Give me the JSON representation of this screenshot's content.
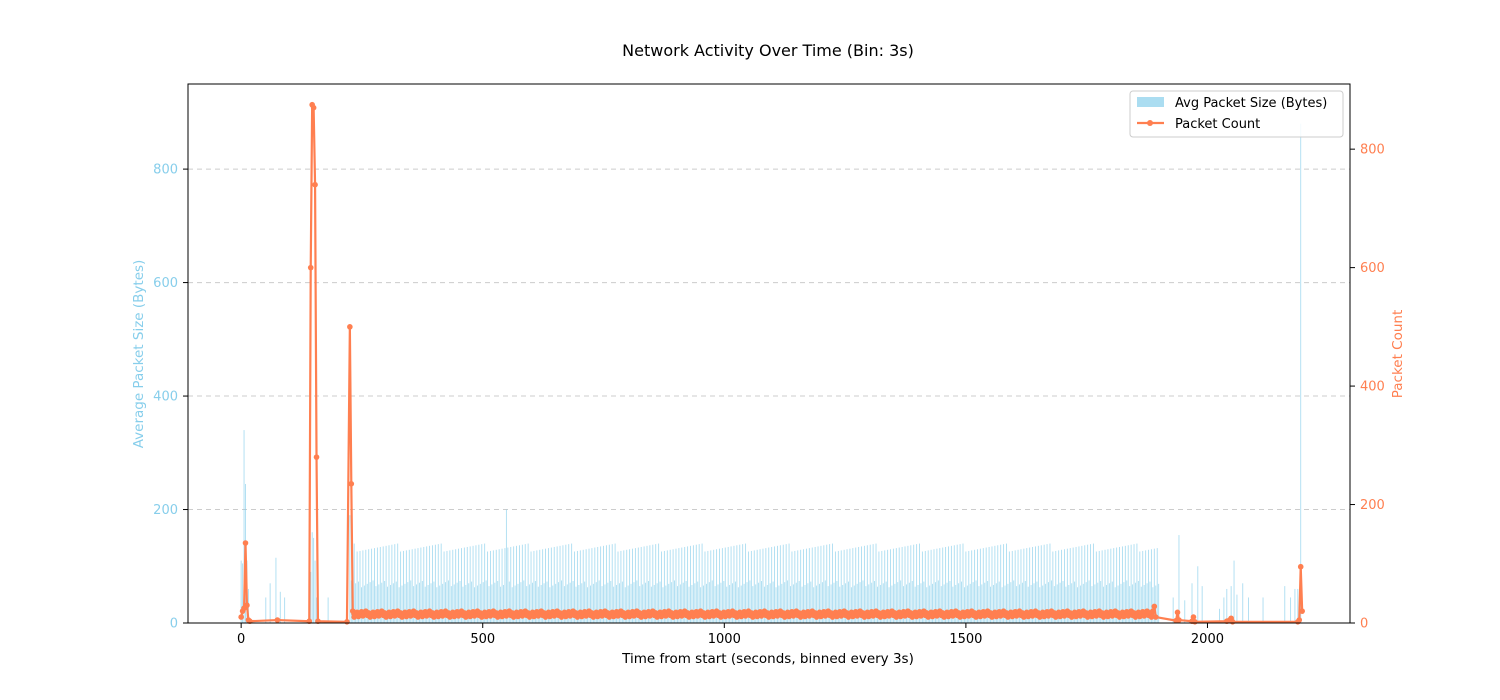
{
  "chart_data": {
    "type": "bar+line",
    "title": "Network Activity Over Time (Bin: 3s)",
    "xlabel": "Time from start (seconds, binned every 3s)",
    "ylabel_left": "Average Packet Size (Bytes)",
    "ylabel_right": "Packet Count",
    "xlim": [
      -110,
      2295
    ],
    "ylim_left": [
      0,
      950
    ],
    "ylim_right": [
      0,
      910
    ],
    "x_ticks": [
      0,
      500,
      1000,
      1500,
      2000
    ],
    "y_left_ticks": [
      0,
      200,
      400,
      600,
      800
    ],
    "y_right_ticks": [
      0,
      200,
      400,
      600,
      800
    ],
    "grid": "horizontal-dashed",
    "legend_position": "top-right",
    "colors": {
      "bars": "#87CEEB",
      "line": "#FF7F50",
      "left_axis": "#87CEEB",
      "right_axis": "#FF7F50"
    },
    "series": [
      {
        "name": "Avg Packet Size (Bytes)",
        "kind": "bar",
        "axis": "left",
        "x": [
          0,
          3,
          6,
          9,
          12,
          15,
          51,
          60,
          72,
          81,
          90,
          144,
          147,
          150,
          153,
          156,
          180,
          225,
          228,
          231,
          2193
        ],
        "values": [
          110,
          105,
          340,
          245,
          110,
          60,
          45,
          70,
          115,
          55,
          45,
          90,
          160,
          150,
          110,
          45,
          45,
          190,
          75,
          70,
          880
        ],
        "bulk_region": {
          "x_start": 234,
          "x_end": 1899,
          "step": 3,
          "typical_high": 140,
          "typical_low": 75,
          "peak_x": 549,
          "peak_value": 200
        },
        "tail": {
          "x": [
            1929,
            1941,
            1953,
            1968,
            1980,
            1989,
            2025,
            2034,
            2040,
            2049,
            2055,
            2061,
            2073,
            2085,
            2115,
            2160,
            2172,
            2181,
            2187
          ],
          "values": [
            45,
            155,
            40,
            70,
            100,
            65,
            25,
            45,
            60,
            65,
            110,
            50,
            70,
            45,
            45,
            65,
            45,
            60,
            60
          ]
        }
      },
      {
        "name": "Packet Count",
        "kind": "line",
        "axis": "right",
        "x": [
          0,
          3,
          6,
          9,
          12,
          15,
          18,
          75,
          141,
          144,
          147,
          150,
          153,
          156,
          159,
          219,
          225,
          228,
          231,
          234,
          1884,
          1887,
          1890,
          1893,
          1935,
          1938,
          1941,
          1968,
          1971,
          1974,
          2040,
          2046,
          2049,
          2052,
          2187,
          2190,
          2193,
          2196
        ],
        "values": [
          10,
          20,
          25,
          135,
          30,
          5,
          3,
          5,
          3,
          600,
          875,
          870,
          740,
          280,
          3,
          2,
          500,
          235,
          20,
          15,
          15,
          20,
          28,
          10,
          4,
          18,
          5,
          3,
          10,
          2,
          3,
          5,
          8,
          2,
          2,
          5,
          95,
          20
        ],
        "bulk_region": {
          "x_start": 234,
          "x_end": 1884,
          "step": 3,
          "typical_low": 10,
          "typical_high": 20
        }
      }
    ]
  }
}
